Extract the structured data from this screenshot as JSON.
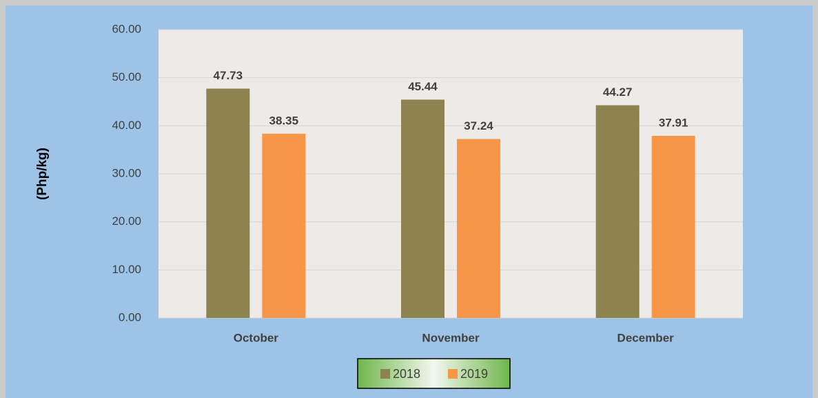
{
  "chart_data": {
    "type": "bar",
    "y_label": "(Php/kg)",
    "categories": [
      "October",
      "November",
      "December"
    ],
    "series": [
      {
        "name": "2018",
        "color": "#8c8350",
        "values": [
          47.73,
          45.44,
          44.27
        ]
      },
      {
        "name": "2019",
        "color": "#f79646",
        "values": [
          38.35,
          37.24,
          37.91
        ]
      }
    ],
    "ylim": [
      0,
      60
    ],
    "yticks": [
      {
        "value": 0,
        "label": "0.00"
      },
      {
        "value": 10,
        "label": "10.00"
      },
      {
        "value": 20,
        "label": "20.00"
      },
      {
        "value": 30,
        "label": "30.00"
      },
      {
        "value": 40,
        "label": "40.00"
      },
      {
        "value": 50,
        "label": "50.00"
      },
      {
        "value": 60,
        "label": "60.00"
      }
    ],
    "grid": true,
    "legend": "bottom"
  }
}
